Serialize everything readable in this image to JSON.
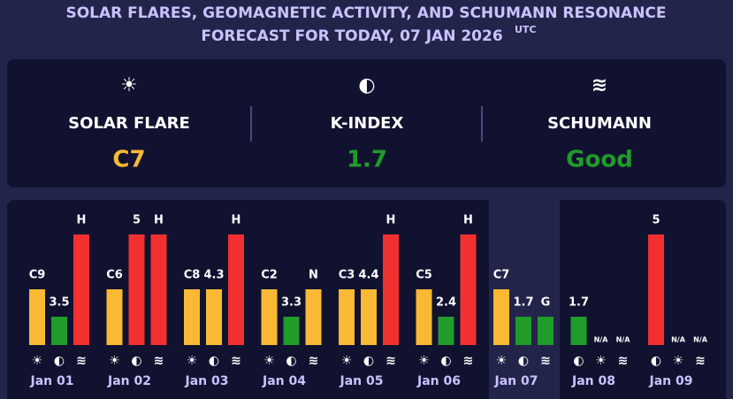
{
  "header": {
    "title_line1": "SOLAR FLARES, GEOMAGNETIC ACTIVITY, AND SCHUMANN RESONANCE",
    "title_line2": "FORECAST FOR TODAY, 07 JAN 2026",
    "title_sup": "UTC"
  },
  "summary": [
    {
      "icon": "☀",
      "label": "SOLAR FLARE",
      "value": "C7",
      "color": "#f9b934"
    },
    {
      "icon": "◐",
      "label": "K-INDEX",
      "value": "1.7",
      "color": "#1f9c2a"
    },
    {
      "icon": "≋",
      "label": "SCHUMANN",
      "value": "Good",
      "color": "#1f9c2a"
    }
  ],
  "days": [
    {
      "date": "Jan 01",
      "items": [
        {
          "icon": "☀",
          "label": "C9",
          "color": "#f9b934"
        },
        {
          "icon": "◐",
          "label": "3.5",
          "color": "#1f9c2a"
        },
        {
          "icon": "≋",
          "label": "H",
          "color": "#f2302f"
        }
      ]
    },
    {
      "date": "Jan 02",
      "items": [
        {
          "icon": "☀",
          "label": "C6",
          "color": "#f9b934"
        },
        {
          "icon": "◐",
          "label": "5",
          "color": "#f2302f"
        },
        {
          "icon": "≋",
          "label": "H",
          "color": "#f2302f"
        }
      ]
    },
    {
      "date": "Jan 03",
      "items": [
        {
          "icon": "☀",
          "label": "C8",
          "color": "#f9b934"
        },
        {
          "icon": "◐",
          "label": "4.3",
          "color": "#f9b934"
        },
        {
          "icon": "≋",
          "label": "H",
          "color": "#f2302f"
        }
      ]
    },
    {
      "date": "Jan 04",
      "items": [
        {
          "icon": "☀",
          "label": "C2",
          "color": "#f9b934"
        },
        {
          "icon": "◐",
          "label": "3.3",
          "color": "#1f9c2a"
        },
        {
          "icon": "≋",
          "label": "N",
          "color": "#f9b934"
        }
      ]
    },
    {
      "date": "Jan 05",
      "items": [
        {
          "icon": "☀",
          "label": "C3",
          "color": "#f9b934"
        },
        {
          "icon": "◐",
          "label": "4.4",
          "color": "#f9b934"
        },
        {
          "icon": "≋",
          "label": "H",
          "color": "#f2302f"
        }
      ]
    },
    {
      "date": "Jan 06",
      "items": [
        {
          "icon": "☀",
          "label": "C5",
          "color": "#f9b934"
        },
        {
          "icon": "◐",
          "label": "2.4",
          "color": "#1f9c2a"
        },
        {
          "icon": "≋",
          "label": "H",
          "color": "#f2302f"
        }
      ]
    },
    {
      "date": "Jan 07",
      "highlight": true,
      "items": [
        {
          "icon": "☀",
          "label": "C7",
          "color": "#f9b934"
        },
        {
          "icon": "◐",
          "label": "1.7",
          "color": "#1f9c2a"
        },
        {
          "icon": "≋",
          "label": "G",
          "color": "#1f9c2a"
        }
      ]
    },
    {
      "date": "Jan 08",
      "items": [
        {
          "icon": "◐",
          "label": "1.7",
          "color": "#1f9c2a"
        },
        {
          "icon": "☀",
          "label": "N/A",
          "color": null
        },
        {
          "icon": "≋",
          "label": "N/A",
          "color": null
        }
      ]
    },
    {
      "date": "Jan 09",
      "items": [
        {
          "icon": "◐",
          "label": "5",
          "color": "#f2302f"
        },
        {
          "icon": "☀",
          "label": "N/A",
          "color": null
        },
        {
          "icon": "≋",
          "label": "N/A",
          "color": null
        }
      ]
    }
  ]
}
